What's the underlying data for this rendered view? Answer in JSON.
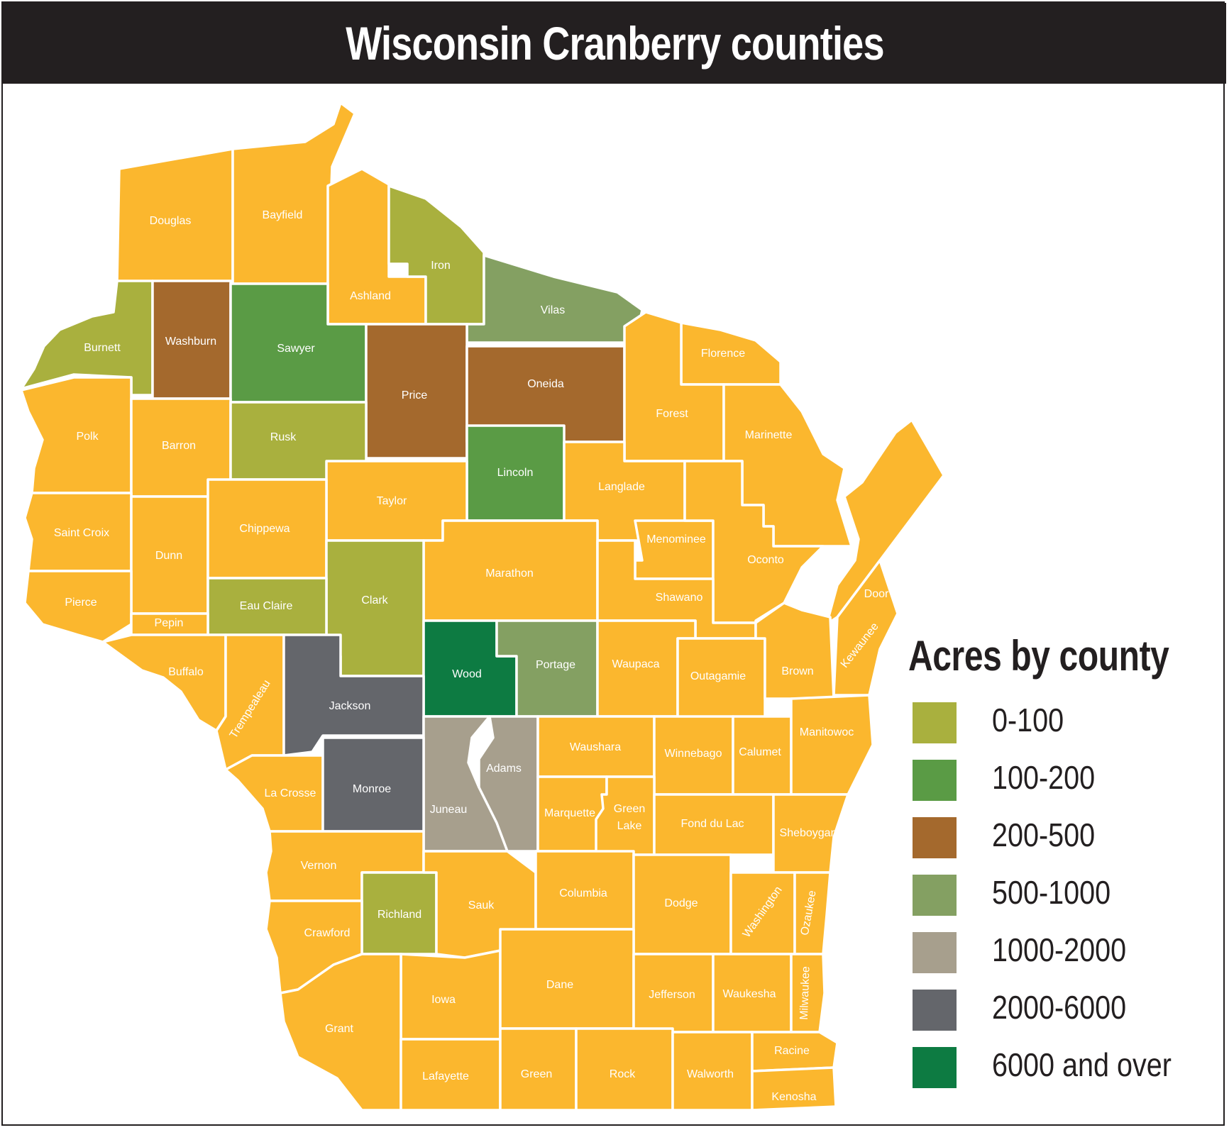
{
  "title": "Wisconsin Cranberry counties",
  "legend": {
    "title": "Acres by county",
    "items": [
      {
        "label": "0-100",
        "color": "#a9b03e"
      },
      {
        "label": "100-200",
        "color": "#5a9b45"
      },
      {
        "label": "200-500",
        "color": "#a4692d"
      },
      {
        "label": "500-1000",
        "color": "#84a062"
      },
      {
        "label": "1000-2000",
        "color": "#a79f8d"
      },
      {
        "label": "2000-6000",
        "color": "#64666b"
      },
      {
        "label": "6000 and over",
        "color": "#0d7b42"
      }
    ]
  },
  "default_color": "#fbb72e",
  "counties": {
    "douglas": {
      "label": "Douglas",
      "class": "none"
    },
    "bayfield": {
      "label": "Bayfield",
      "class": "none"
    },
    "ashland": {
      "label": "Ashland",
      "class": "none"
    },
    "iron": {
      "label": "Iron",
      "class": "0-100"
    },
    "vilas": {
      "label": "Vilas",
      "class": "500-1000"
    },
    "burnett": {
      "label": "Burnett",
      "class": "0-100"
    },
    "washburn": {
      "label": "Washburn",
      "class": "200-500"
    },
    "sawyer": {
      "label": "Sawyer",
      "class": "100-200"
    },
    "price": {
      "label": "Price",
      "class": "200-500"
    },
    "oneida": {
      "label": "Oneida",
      "class": "200-500"
    },
    "florence": {
      "label": "Florence",
      "class": "none"
    },
    "forest": {
      "label": "Forest",
      "class": "none"
    },
    "marinette": {
      "label": "Marinette",
      "class": "none"
    },
    "polk": {
      "label": "Polk",
      "class": "none"
    },
    "barron": {
      "label": "Barron",
      "class": "none"
    },
    "rusk": {
      "label": "Rusk",
      "class": "0-100"
    },
    "lincoln": {
      "label": "Lincoln",
      "class": "100-200"
    },
    "langlade": {
      "label": "Langlade",
      "class": "none"
    },
    "taylor": {
      "label": "Taylor",
      "class": "none"
    },
    "saint_croix": {
      "label": "Saint Croix",
      "class": "none"
    },
    "dunn": {
      "label": "Dunn",
      "class": "none"
    },
    "chippewa": {
      "label": "Chippewa",
      "class": "none"
    },
    "menominee": {
      "label": "Menominee",
      "class": "none"
    },
    "oconto": {
      "label": "Oconto",
      "class": "none"
    },
    "marathon": {
      "label": "Marathon",
      "class": "none"
    },
    "clark": {
      "label": "Clark",
      "class": "0-100"
    },
    "pierce": {
      "label": "Pierce",
      "class": "none"
    },
    "eau_claire": {
      "label": "Eau Claire",
      "class": "0-100"
    },
    "pepin": {
      "label": "Pepin",
      "class": "none"
    },
    "shawano": {
      "label": "Shawano",
      "class": "none"
    },
    "door": {
      "label": "Door",
      "class": "none"
    },
    "buffalo": {
      "label": "Buffalo",
      "class": "none"
    },
    "wood": {
      "label": "Wood",
      "class": "6000 and over"
    },
    "portage": {
      "label": "Portage",
      "class": "500-1000"
    },
    "waupaca": {
      "label": "Waupaca",
      "class": "none"
    },
    "outagamie": {
      "label": "Outagamie",
      "class": "none"
    },
    "brown": {
      "label": "Brown",
      "class": "none"
    },
    "kewaunee": {
      "label": "Kewaunee",
      "class": "none"
    },
    "trempealeau": {
      "label": "Trempealeau",
      "class": "none"
    },
    "jackson": {
      "label": "Jackson",
      "class": "2000-6000"
    },
    "adams": {
      "label": "Adams",
      "class": "1000-2000"
    },
    "juneau": {
      "label": "Juneau",
      "class": "1000-2000"
    },
    "waushara": {
      "label": "Waushara",
      "class": "none"
    },
    "winnebago": {
      "label": "Winnebago",
      "class": "none"
    },
    "calumet": {
      "label": "Calumet",
      "class": "none"
    },
    "manitowoc": {
      "label": "Manitowoc",
      "class": "none"
    },
    "la_crosse": {
      "label": "La Crosse",
      "class": "none"
    },
    "monroe": {
      "label": "Monroe",
      "class": "2000-6000"
    },
    "marquette": {
      "label": "Marquette",
      "class": "none"
    },
    "green_lake_1": {
      "label": "Green",
      "class": "none"
    },
    "green_lake_2": {
      "label": "Lake",
      "class": "none"
    },
    "fond_du_lac": {
      "label": "Fond du Lac",
      "class": "none"
    },
    "sheboygan": {
      "label": "Sheboygan",
      "class": "none"
    },
    "vernon": {
      "label": "Vernon",
      "class": "none"
    },
    "richland": {
      "label": "Richland",
      "class": "0-100"
    },
    "sauk": {
      "label": "Sauk",
      "class": "none"
    },
    "columbia": {
      "label": "Columbia",
      "class": "none"
    },
    "dodge": {
      "label": "Dodge",
      "class": "none"
    },
    "washington": {
      "label": "Washington",
      "class": "none"
    },
    "ozaukee": {
      "label": "Ozaukee",
      "class": "none"
    },
    "crawford": {
      "label": "Crawford",
      "class": "none"
    },
    "iowa": {
      "label": "Iowa",
      "class": "none"
    },
    "dane": {
      "label": "Dane",
      "class": "none"
    },
    "jefferson": {
      "label": "Jefferson",
      "class": "none"
    },
    "waukesha": {
      "label": "Waukesha",
      "class": "none"
    },
    "milwaukee": {
      "label": "Milwaukee",
      "class": "none"
    },
    "grant": {
      "label": "Grant",
      "class": "none"
    },
    "lafayette": {
      "label": "Lafayette",
      "class": "none"
    },
    "green": {
      "label": "Green",
      "class": "none"
    },
    "rock": {
      "label": "Rock",
      "class": "none"
    },
    "walworth": {
      "label": "Walworth",
      "class": "none"
    },
    "racine": {
      "label": "Racine",
      "class": "none"
    },
    "kenosha": {
      "label": "Kenosha",
      "class": "none"
    }
  }
}
